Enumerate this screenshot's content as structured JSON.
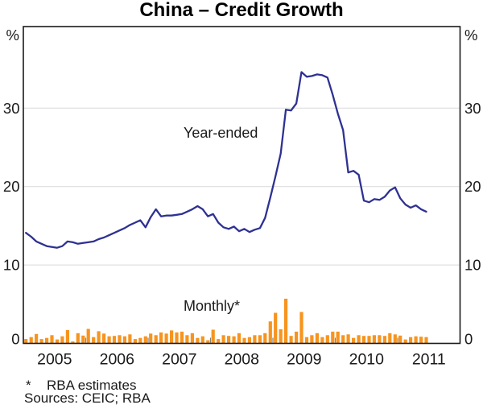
{
  "title": "China – Credit Growth",
  "axes": {
    "unit_left": "%",
    "unit_right": "%"
  },
  "labels": {
    "year_ended": "Year-ended",
    "monthly": "Monthly*"
  },
  "footnotes": {
    "asterisk": "*",
    "line1": "RBA estimates",
    "line2": "Sources: CEIC; RBA"
  },
  "colors": {
    "line": "#2E3192",
    "bars": "#F7941E",
    "grid": "#D9D9D9",
    "axis": "#1A1A1A",
    "tick": "#808080",
    "text": "#1A1A1A"
  },
  "chart_data": {
    "type": "bar",
    "subtype": "line+bar combo",
    "title": "China – Credit Growth",
    "xlabel": "",
    "ylabel": "%",
    "ylim": [
      0,
      40.4
    ],
    "yticks": [
      0,
      10,
      20,
      30
    ],
    "grid": "horizontal gridlines at 10, 20, 30",
    "legend_position": "text labels inside plot",
    "x_axis": {
      "unit": "month",
      "start": "2005-01",
      "end": "2011-12",
      "data_end": "2011-06",
      "year_labels": [
        2005,
        2006,
        2007,
        2008,
        2009,
        2010,
        2011
      ]
    },
    "series": [
      {
        "name": "Year-ended",
        "type": "line",
        "unit": "% change, year-ended",
        "color": "#2E3192",
        "values": [
          14.1,
          13.6,
          13.0,
          12.7,
          12.4,
          12.3,
          12.2,
          12.4,
          13.0,
          12.9,
          12.7,
          12.8,
          12.9,
          13.0,
          13.3,
          13.5,
          13.8,
          14.1,
          14.4,
          14.7,
          15.1,
          15.4,
          15.7,
          14.8,
          16.1,
          17.1,
          16.2,
          16.3,
          16.3,
          16.4,
          16.5,
          16.8,
          17.1,
          17.5,
          17.1,
          16.2,
          16.5,
          15.4,
          14.8,
          14.6,
          14.9,
          14.3,
          14.6,
          14.2,
          14.5,
          14.7,
          16.0,
          18.6,
          21.3,
          24.2,
          29.8,
          29.7,
          30.6,
          34.6,
          34.0,
          34.1,
          34.3,
          34.2,
          33.9,
          31.7,
          29.3,
          27.2,
          21.8,
          22.0,
          21.5,
          18.2,
          18.0,
          18.4,
          18.3,
          18.7,
          19.5,
          19.9,
          18.5,
          17.7,
          17.3,
          17.6,
          17.1,
          16.8
        ]
      },
      {
        "name": "Monthly*",
        "type": "bar",
        "unit": "% monthly growth",
        "color": "#F7941E",
        "values": [
          0.55,
          0.8,
          1.2,
          0.55,
          0.7,
          1.05,
          0.5,
          0.9,
          1.7,
          0.25,
          1.3,
          1.0,
          1.85,
          0.8,
          1.55,
          1.25,
          0.9,
          0.95,
          1.05,
          0.9,
          1.15,
          0.55,
          0.7,
          0.9,
          1.25,
          1.05,
          1.4,
          1.25,
          1.65,
          1.4,
          1.5,
          1.05,
          1.3,
          0.7,
          0.9,
          0.4,
          1.75,
          0.55,
          1.05,
          0.95,
          0.9,
          1.3,
          0.7,
          0.8,
          1.05,
          1.05,
          1.3,
          2.8,
          3.9,
          1.8,
          5.7,
          0.95,
          1.5,
          4.0,
          0.8,
          1.05,
          1.3,
          0.8,
          1.05,
          1.5,
          1.5,
          1.05,
          1.15,
          0.7,
          1.05,
          0.95,
          0.95,
          1.05,
          1.05,
          0.95,
          1.3,
          1.15,
          1.0,
          0.5,
          0.8,
          0.9,
          0.85,
          0.8
        ]
      }
    ]
  }
}
